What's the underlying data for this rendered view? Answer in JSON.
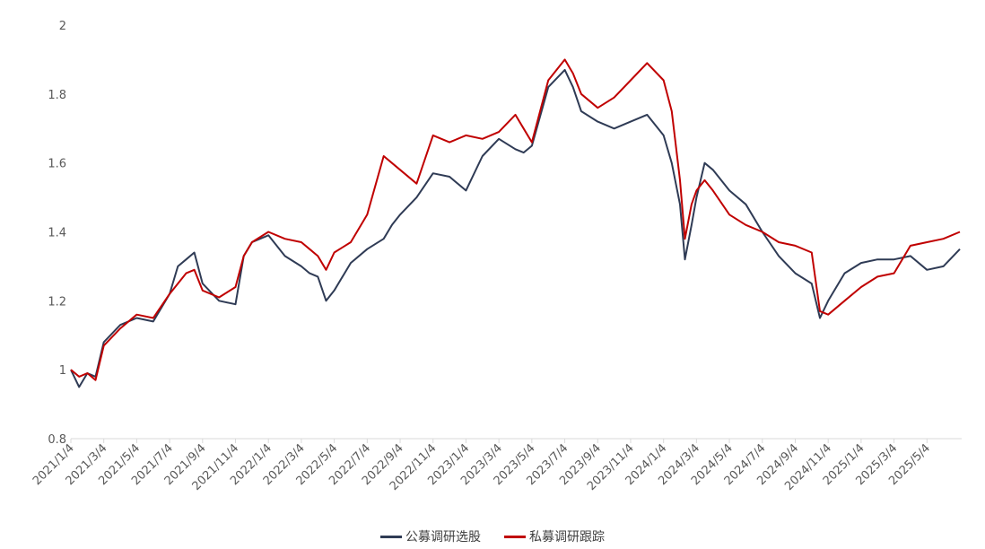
{
  "chart_data": {
    "type": "line",
    "title": "",
    "xlabel": "",
    "ylabel": "",
    "ylim": [
      0.8,
      2.0
    ],
    "yticks": [
      "0.8",
      "1",
      "1.2",
      "1.4",
      "1.6",
      "1.8",
      "2"
    ],
    "x_unit": "months since 2021/1/4",
    "xlim": [
      0,
      54
    ],
    "xtick_labels": [
      "2021/1/4",
      "2021/3/4",
      "2021/5/4",
      "2021/7/4",
      "2021/9/4",
      "2021/11/4",
      "2022/1/4",
      "2022/3/4",
      "2022/5/4",
      "2022/7/4",
      "2022/9/4",
      "2022/11/4",
      "2023/1/4",
      "2023/3/4",
      "2023/5/4",
      "2023/7/4",
      "2023/9/4",
      "2023/11/4",
      "2024/1/4",
      "2024/3/4",
      "2024/5/4",
      "2024/7/4",
      "2024/9/4",
      "2024/11/4",
      "2025/1/4",
      "2025/3/4",
      "2025/5/4"
    ],
    "x": [
      0,
      0.5,
      1,
      1.5,
      2,
      3,
      4,
      5,
      6,
      6.5,
      7,
      7.5,
      8,
      9,
      10,
      10.5,
      11,
      12,
      13,
      14,
      14.5,
      15,
      15.5,
      16,
      17,
      18,
      19,
      19.5,
      20,
      21,
      22,
      23,
      24,
      25,
      26,
      27,
      27.5,
      28,
      29,
      30,
      30.5,
      31,
      32,
      33,
      34,
      35,
      36,
      36.5,
      37,
      37.3,
      37.7,
      38,
      38.5,
      39,
      40,
      41,
      42,
      43,
      44,
      45,
      45.5,
      46,
      47,
      48,
      49,
      50,
      51,
      52,
      53,
      54
    ],
    "series": [
      {
        "name": "公募调研选股",
        "color": "#2f3b55",
        "values": [
          1.0,
          0.95,
          0.99,
          0.98,
          1.08,
          1.13,
          1.15,
          1.14,
          1.22,
          1.3,
          1.32,
          1.34,
          1.25,
          1.2,
          1.19,
          1.33,
          1.37,
          1.39,
          1.33,
          1.3,
          1.28,
          1.27,
          1.2,
          1.23,
          1.31,
          1.35,
          1.38,
          1.42,
          1.45,
          1.5,
          1.57,
          1.56,
          1.52,
          1.62,
          1.67,
          1.64,
          1.63,
          1.65,
          1.82,
          1.87,
          1.82,
          1.75,
          1.72,
          1.7,
          1.72,
          1.74,
          1.68,
          1.6,
          1.48,
          1.32,
          1.42,
          1.5,
          1.6,
          1.58,
          1.52,
          1.48,
          1.4,
          1.33,
          1.28,
          1.25,
          1.15,
          1.2,
          1.28,
          1.31,
          1.32,
          1.32,
          1.33,
          1.29,
          1.3,
          1.35
        ]
      },
      {
        "name": "私募调研跟踪",
        "color": "#c00000",
        "values": [
          1.0,
          0.98,
          0.99,
          0.97,
          1.07,
          1.12,
          1.16,
          1.15,
          1.22,
          1.25,
          1.28,
          1.29,
          1.23,
          1.21,
          1.24,
          1.33,
          1.37,
          1.4,
          1.38,
          1.37,
          1.35,
          1.33,
          1.29,
          1.34,
          1.37,
          1.45,
          1.62,
          1.6,
          1.58,
          1.54,
          1.68,
          1.66,
          1.68,
          1.67,
          1.69,
          1.74,
          1.7,
          1.66,
          1.84,
          1.9,
          1.86,
          1.8,
          1.76,
          1.79,
          1.84,
          1.89,
          1.84,
          1.75,
          1.55,
          1.38,
          1.48,
          1.52,
          1.55,
          1.52,
          1.45,
          1.42,
          1.4,
          1.37,
          1.36,
          1.34,
          1.17,
          1.16,
          1.2,
          1.24,
          1.27,
          1.28,
          1.36,
          1.37,
          1.38,
          1.4
        ]
      }
    ],
    "legend": "bottom-center",
    "grid": false
  }
}
